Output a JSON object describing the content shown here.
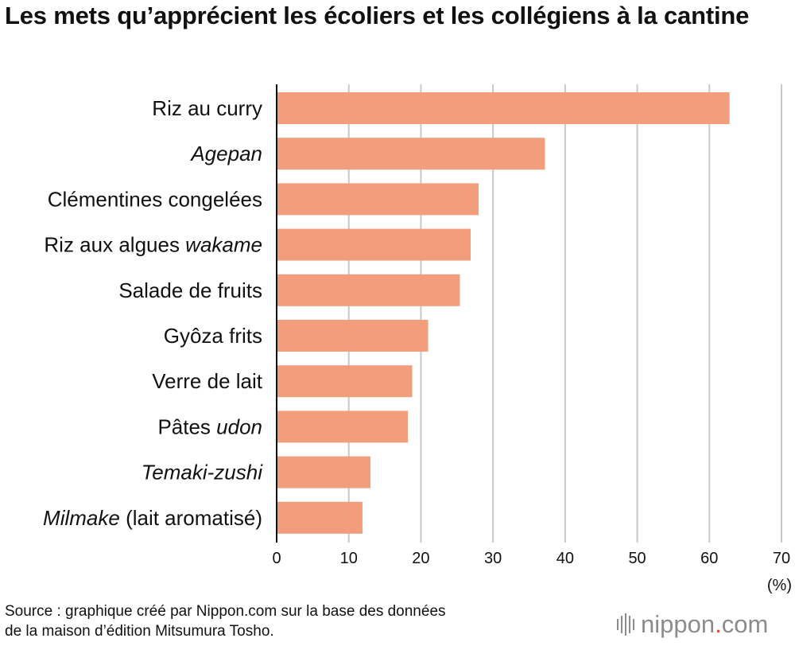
{
  "title": "Les mets qu’apprécient les écoliers et les collégiens à la cantine",
  "source_line1": "Source : graphique créé par Nippon.com sur la base des données",
  "source_line2": "de la maison d’édition Mitsumura Tosho.",
  "brand": {
    "name": "nippon",
    "dot": ".",
    "suffix": "com"
  },
  "colors": {
    "bar": "#f29d7b",
    "grid": "#c8c8c8",
    "axis": "#111111",
    "brand_dot": "#e9442e",
    "brand_text": "#8c8c8c"
  },
  "chart_data": {
    "type": "bar",
    "orientation": "horizontal",
    "categories": [
      {
        "parts": [
          {
            "text": "Riz au curry",
            "italic": false
          }
        ]
      },
      {
        "parts": [
          {
            "text": "Agepan",
            "italic": true
          }
        ]
      },
      {
        "parts": [
          {
            "text": "Clémentines congelées",
            "italic": false
          }
        ]
      },
      {
        "parts": [
          {
            "text": "Riz aux algues ",
            "italic": false
          },
          {
            "text": "wakame",
            "italic": true
          }
        ]
      },
      {
        "parts": [
          {
            "text": "Salade de fruits",
            "italic": false
          }
        ]
      },
      {
        "parts": [
          {
            "text": "Gyôza frits",
            "italic": false
          }
        ]
      },
      {
        "parts": [
          {
            "text": "Verre de lait",
            "italic": false
          }
        ]
      },
      {
        "parts": [
          {
            "text": "Pâtes ",
            "italic": false
          },
          {
            "text": "udon",
            "italic": true
          }
        ]
      },
      {
        "parts": [
          {
            "text": "Temaki-zushi",
            "italic": true
          }
        ]
      },
      {
        "parts": [
          {
            "text": "Milmake",
            "italic": true
          },
          {
            "text": " (lait aromatisé)",
            "italic": false
          }
        ]
      }
    ],
    "values": [
      62.8,
      37.2,
      28.0,
      26.9,
      25.4,
      21.0,
      18.8,
      18.2,
      13.0,
      11.9
    ],
    "xlim": [
      0,
      70
    ],
    "xticks": [
      0,
      10,
      20,
      30,
      40,
      50,
      60,
      70
    ],
    "unit": "(%)",
    "grid": true
  }
}
